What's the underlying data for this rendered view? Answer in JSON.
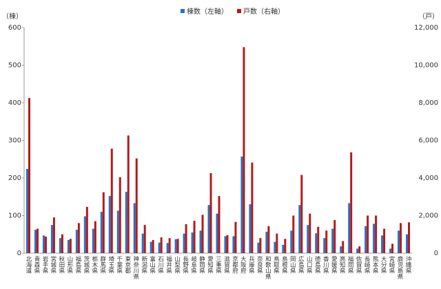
{
  "chart_data": {
    "type": "bar",
    "legend": "top",
    "grid": false,
    "y_unit": "（棟）",
    "y2_unit": "（戸）",
    "categories": [
      "北海道",
      "青森県",
      "岩手県",
      "宮城県",
      "秋田県",
      "山形県",
      "福島県",
      "茨城県",
      "栃木県",
      "群馬県",
      "埼玉県",
      "千葉県",
      "東京都",
      "神奈川県",
      "新潟県",
      "富山県",
      "石川県",
      "福井県",
      "山梨県",
      "長野県",
      "岐阜県",
      "静岡県",
      "愛知県",
      "三重県",
      "滋賀県",
      "京都府",
      "大阪府",
      "兵庫県",
      "奈良県",
      "和歌山県",
      "鳥取県",
      "島根県",
      "岡山県",
      "広島県",
      "山口県",
      "徳島県",
      "香川県",
      "愛媛県",
      "高知県",
      "福岡県",
      "佐賀県",
      "長崎県",
      "熊本県",
      "大分県",
      "宮崎県",
      "鹿児島県",
      "沖縄県"
    ],
    "series": [
      {
        "name": "棟数（左軸）",
        "color": "#2f6ebf",
        "values": [
          224,
          62,
          47,
          75,
          40,
          35,
          62,
          98,
          65,
          110,
          152,
          113,
          163,
          133,
          52,
          30,
          28,
          27,
          37,
          52,
          55,
          60,
          128,
          105,
          45,
          45,
          257,
          130,
          28,
          57,
          30,
          22,
          60,
          128,
          75,
          53,
          40,
          65,
          18,
          133,
          12,
          72,
          78,
          47,
          12,
          60,
          50
        ]
      },
      {
        "name": "戸数（右軸）",
        "color": "#b31b1b",
        "axis": "y2",
        "values": [
          8250,
          1300,
          880,
          1900,
          1000,
          760,
          1600,
          2460,
          1700,
          3240,
          5560,
          4040,
          6260,
          5040,
          1500,
          700,
          840,
          800,
          760,
          1540,
          1720,
          2040,
          4260,
          3040,
          960,
          1660,
          10960,
          4820,
          800,
          1440,
          1040,
          760,
          2000,
          4160,
          2100,
          1400,
          1200,
          1760,
          640,
          5360,
          360,
          2000,
          2000,
          1300,
          500,
          1600,
          1640
        ]
      }
    ],
    "ylim": [
      0,
      600
    ],
    "yticks": [
      0,
      100,
      200,
      300,
      400,
      500,
      600
    ],
    "y2lim": [
      0,
      12000
    ],
    "y2ticks": [
      0,
      {
        "value": 2000,
        "label": "2,000"
      },
      {
        "value": 4000,
        "label": "4,000"
      },
      {
        "value": 6000,
        "label": "6,000"
      },
      {
        "value": 8000,
        "label": "8,000"
      },
      {
        "value": 10000,
        "label": "10,000"
      },
      {
        "value": 12000,
        "label": "12,000"
      }
    ]
  }
}
